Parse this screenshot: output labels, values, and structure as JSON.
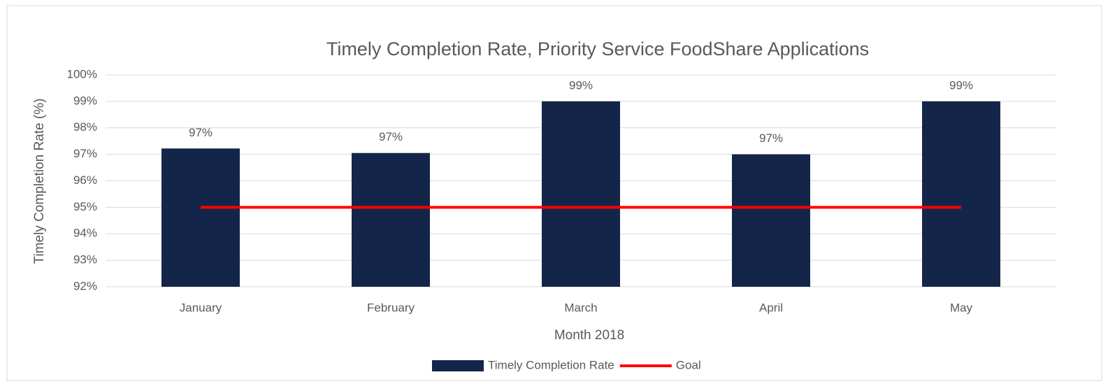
{
  "chart_data": {
    "type": "bar",
    "title": "Timely Completion Rate, Priority Service FoodShare Applications",
    "x_label": "Month 2018",
    "y_label": "Timely Completion Rate (%)",
    "categories": [
      "January",
      "February",
      "March",
      "April",
      "May"
    ],
    "series": [
      {
        "name": "Timely Completion Rate",
        "type": "bar",
        "color": "#14254a",
        "values": [
          97.22,
          97.05,
          99.0,
          97.0,
          99.0
        ],
        "value_labels": [
          "97%",
          "97%",
          "99%",
          "97%",
          "99%"
        ]
      },
      {
        "name": "Goal",
        "type": "line",
        "color": "#ff0000",
        "values": [
          95,
          95,
          95,
          95,
          95
        ]
      }
    ],
    "ylim": [
      92,
      100
    ],
    "yticks": [
      {
        "value": 92,
        "label": "92%"
      },
      {
        "value": 93,
        "label": "93%"
      },
      {
        "value": 94,
        "label": "94%"
      },
      {
        "value": 95,
        "label": "95%"
      },
      {
        "value": 96,
        "label": "96%"
      },
      {
        "value": 97,
        "label": "97%"
      },
      {
        "value": 98,
        "label": "98%"
      },
      {
        "value": 99,
        "label": "99%"
      },
      {
        "value": 100,
        "label": "100%"
      }
    ],
    "grid": true,
    "legend": "bottom"
  }
}
